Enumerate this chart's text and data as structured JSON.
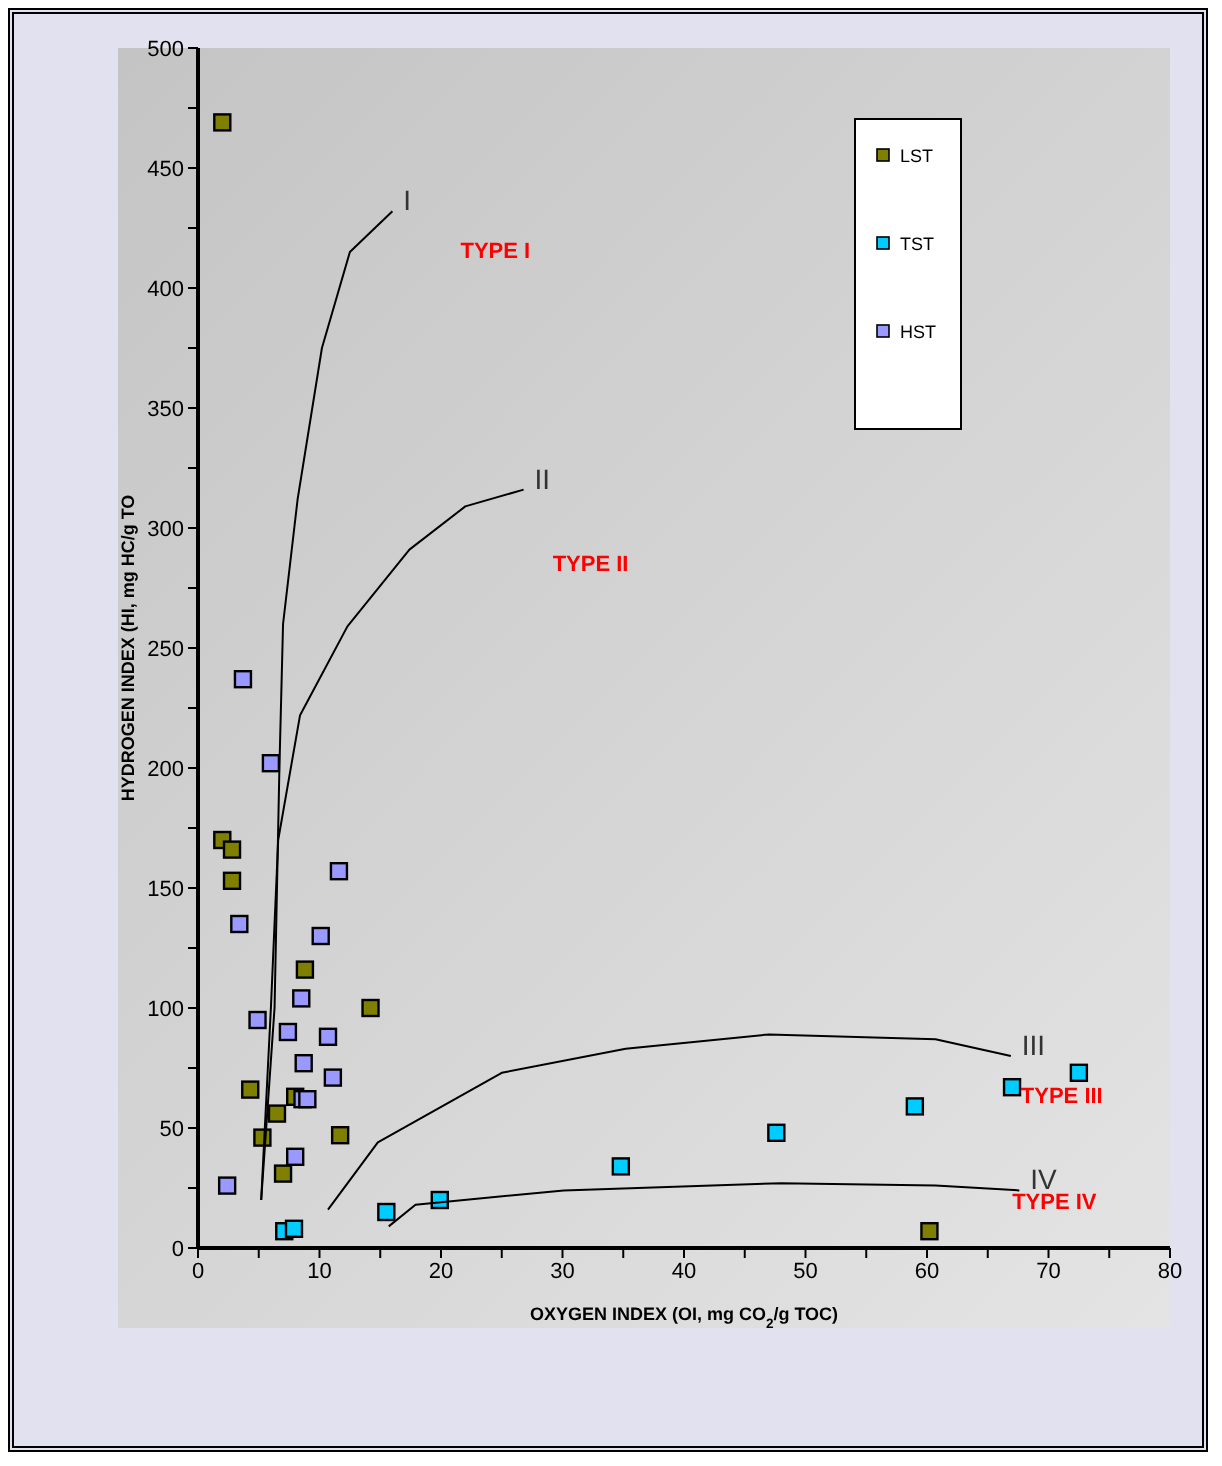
{
  "chart_data": {
    "type": "scatter",
    "xlabel": "OXYGEN INDEX (OI, mg CO$_{2}$/g TOC)",
    "ylabel": "HYDROGEN INDEX (HI, mg HC/g TO",
    "xlim": [
      0,
      80
    ],
    "ylim": [
      0,
      500
    ],
    "xticks": [
      0,
      {
        "value": 5,
        "label": null
      },
      10,
      {
        "value": 15,
        "label": null
      },
      20,
      {
        "value": 25,
        "label": null
      },
      30,
      {
        "value": 35,
        "label": null
      },
      40,
      {
        "value": 45,
        "label": null
      },
      50,
      {
        "value": 55,
        "label": null
      },
      60,
      {
        "value": 65,
        "label": null
      },
      70,
      {
        "value": 75,
        "label": null
      },
      80
    ],
    "yticks": [
      0,
      {
        "value": 25,
        "label": null
      },
      50,
      {
        "value": 75,
        "label": null
      },
      100,
      {
        "value": 125,
        "label": null
      },
      150,
      {
        "value": 175,
        "label": null
      },
      200,
      {
        "value": 225,
        "label": null
      },
      250,
      {
        "value": 275,
        "label": null
      },
      300,
      {
        "value": 325,
        "label": null
      },
      350,
      {
        "value": 375,
        "label": null
      },
      400,
      {
        "value": 425,
        "label": null
      },
      450,
      {
        "value": 475,
        "label": null
      },
      500
    ],
    "grid": false,
    "legend": "top right",
    "marker": "square",
    "series": [
      {
        "name": "LST",
        "color": "#7f7f00",
        "x": [
          2.0,
          2.0,
          2.8,
          2.8,
          8.8,
          14.2,
          4.3,
          8.0,
          6.5,
          5.3,
          11.7,
          7.0,
          60.2
        ],
        "values": [
          469,
          170,
          166,
          153,
          116,
          100,
          66,
          63,
          56,
          46,
          47,
          31,
          7
        ]
      },
      {
        "name": "TST",
        "color": "#00ccff",
        "x": [
          7.1,
          7.9,
          15.5,
          19.9,
          34.8,
          47.6,
          59.0,
          67.0,
          72.5
        ],
        "values": [
          7,
          8,
          15,
          20,
          34,
          48,
          59,
          67,
          73
        ]
      },
      {
        "name": "HST",
        "color": "#9999ff",
        "x": [
          3.7,
          6.0,
          11.6,
          3.4,
          10.1,
          8.5,
          4.9,
          7.4,
          10.7,
          8.7,
          11.1,
          8.6,
          9.0,
          8.0,
          2.4
        ],
        "values": [
          237,
          202,
          157,
          135,
          130,
          104,
          95,
          90,
          88,
          77,
          71,
          62,
          62,
          38,
          26
        ]
      },
      {
        "name": "I",
        "type": "line",
        "color": "#000000",
        "marker": "none",
        "x": [
          5.2,
          6.3,
          6.7,
          7.0,
          8.2,
          10.2,
          12.5,
          16.0
        ],
        "values": [
          20,
          100,
          200,
          260,
          312,
          375,
          415,
          432
        ]
      },
      {
        "name": "II",
        "type": "line",
        "color": "#000000",
        "marker": "none",
        "x": [
          5.2,
          6.0,
          6.6,
          8.4,
          12.3,
          17.4,
          22.0,
          26.8
        ],
        "values": [
          20,
          100,
          170,
          222,
          259,
          291,
          309,
          316
        ]
      },
      {
        "name": "III",
        "type": "line",
        "color": "#000000",
        "marker": "none",
        "x": [
          10.7,
          14.8,
          25.0,
          35.2,
          47.0,
          60.7,
          66.9
        ],
        "values": [
          16,
          44,
          73,
          83,
          89,
          87,
          80
        ]
      },
      {
        "name": "IV",
        "type": "line",
        "color": "#000000",
        "marker": "none",
        "x": [
          15.7,
          17.9,
          30.1,
          48.0,
          60.7,
          67.6
        ],
        "values": [
          9,
          18,
          24,
          27,
          26,
          24
        ]
      }
    ],
    "annotations": [
      "TYPE I",
      "TYPE II",
      "TYPE III",
      "TYPE IV"
    ]
  }
}
